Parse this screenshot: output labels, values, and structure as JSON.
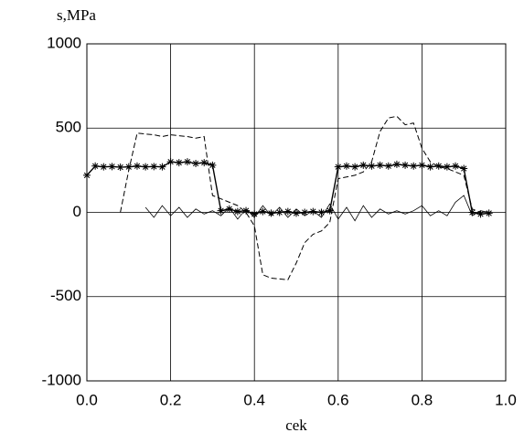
{
  "chart_data": {
    "type": "line",
    "xlabel": "cek",
    "ylabel": "s,MPa",
    "xlim": [
      0,
      1
    ],
    "ylim": [
      -1000,
      1000
    ],
    "xticks": [
      {
        "value": 0,
        "label": "0.0"
      },
      0.2,
      0.4,
      0.6,
      0.8,
      {
        "value": 1,
        "label": "1.0"
      }
    ],
    "yticks": [
      -1000,
      -500,
      0,
      500,
      1000
    ],
    "grid": true,
    "x": [
      0,
      0.02,
      0.04,
      0.06,
      0.08,
      0.1,
      0.12,
      0.14,
      0.16,
      0.18,
      0.2,
      0.22,
      0.24,
      0.26,
      0.28,
      0.3,
      0.32,
      0.34,
      0.36,
      0.38,
      0.4,
      0.42,
      0.44,
      0.46,
      0.48,
      0.5,
      0.52,
      0.54,
      0.56,
      0.58,
      0.6,
      0.62,
      0.64,
      0.66,
      0.68,
      0.7,
      0.72,
      0.74,
      0.76,
      0.78,
      0.8,
      0.82,
      0.84,
      0.86,
      0.88,
      0.9,
      0.92,
      0.94,
      0.96
    ],
    "series": [
      {
        "color": "#000000",
        "line_style": "solid",
        "line_width": 1.4,
        "marker": "asterisk",
        "values": [
          220,
          275,
          270,
          272,
          268,
          270,
          275,
          270,
          272,
          270,
          300,
          295,
          300,
          290,
          295,
          280,
          10,
          20,
          5,
          10,
          -10,
          5,
          -5,
          0,
          5,
          -5,
          0,
          5,
          0,
          10,
          270,
          275,
          270,
          280,
          275,
          280,
          275,
          285,
          280,
          275,
          280,
          270,
          275,
          270,
          275,
          260,
          0,
          -10,
          -5
        ]
      },
      {
        "color": "#000000",
        "line_style": "dashed",
        "line_width": 1,
        "values": [
          null,
          null,
          null,
          null,
          0,
          250,
          470,
          465,
          460,
          450,
          460,
          455,
          450,
          440,
          450,
          100,
          80,
          60,
          40,
          0,
          -80,
          -370,
          -390,
          -395,
          -400,
          -300,
          -180,
          -130,
          -110,
          -60,
          200,
          210,
          220,
          240,
          300,
          480,
          560,
          570,
          520,
          530,
          380,
          300,
          270,
          260,
          240,
          220,
          20,
          0,
          null
        ]
      },
      {
        "color": "#000000",
        "line_style": "solid",
        "line_width": 0.8,
        "values": [
          null,
          null,
          null,
          null,
          null,
          null,
          null,
          30,
          -30,
          40,
          -20,
          30,
          -30,
          20,
          -10,
          10,
          -20,
          30,
          -40,
          20,
          -30,
          40,
          -20,
          30,
          -30,
          20,
          -20,
          10,
          -30,
          50,
          -40,
          30,
          -50,
          40,
          -30,
          20,
          -10,
          10,
          -10,
          10,
          40,
          -20,
          10,
          -20,
          60,
          100,
          -20,
          10,
          0
        ]
      }
    ]
  }
}
